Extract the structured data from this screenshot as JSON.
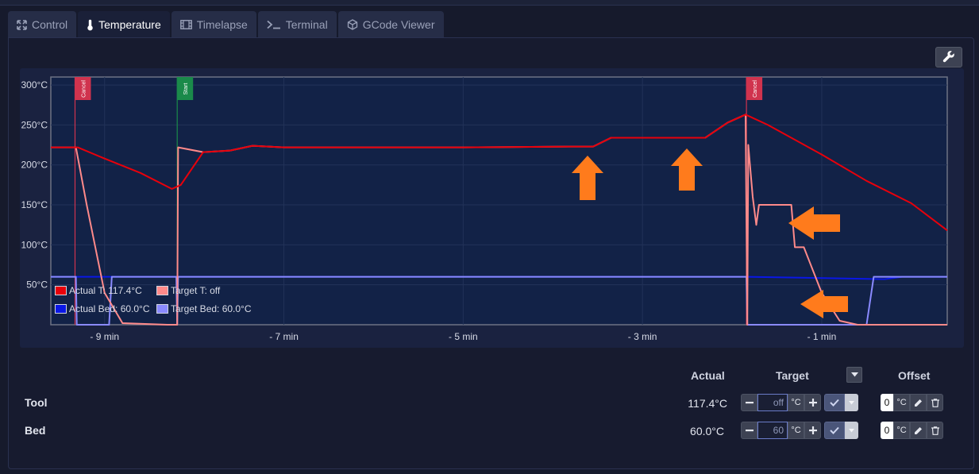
{
  "tabs": [
    {
      "label": "Control",
      "icon": "expand-arrows-icon",
      "active": false
    },
    {
      "label": "Temperature",
      "icon": "thermometer-icon",
      "active": true
    },
    {
      "label": "Timelapse",
      "icon": "film-icon",
      "active": false
    },
    {
      "label": "Terminal",
      "icon": "terminal-icon",
      "active": false
    },
    {
      "label": "GCode Viewer",
      "icon": "cube-icon",
      "active": false
    }
  ],
  "colors": {
    "actual_tool": "#e8000b",
    "target_tool": "#ff8a8a",
    "actual_bed": "#0a17e6",
    "target_bed": "#8a8aff",
    "annotation_arrow": "#ff7b1c"
  },
  "chart_data": {
    "type": "line",
    "x_unit": "min",
    "x_range": [
      -9.6,
      0.4
    ],
    "y_range": [
      0,
      310
    ],
    "x_ticks": [
      {
        "value": -9,
        "label": "- 9 min"
      },
      {
        "value": -7,
        "label": "- 7 min"
      },
      {
        "value": -5,
        "label": "- 5 min"
      },
      {
        "value": -3,
        "label": "- 3 min"
      },
      {
        "value": -1,
        "label": "- 1 min"
      }
    ],
    "y_ticks": [
      {
        "value": 300,
        "label": "300°C"
      },
      {
        "value": 250,
        "label": "250°C"
      },
      {
        "value": 200,
        "label": "200°C"
      },
      {
        "value": 150,
        "label": "150°C"
      },
      {
        "value": 100,
        "label": "100°C"
      },
      {
        "value": 50,
        "label": "50°C"
      }
    ],
    "grid": true,
    "legend_position": "bottom-left",
    "series": [
      {
        "name": "Actual T: 117.4°C",
        "color_key": "actual_tool",
        "points": [
          [
            -9.6,
            222
          ],
          [
            -9.3,
            222
          ],
          [
            -9.0,
            208
          ],
          [
            -8.6,
            190
          ],
          [
            -8.25,
            170
          ],
          [
            -8.15,
            175
          ],
          [
            -7.9,
            216
          ],
          [
            -7.6,
            218
          ],
          [
            -7.35,
            224
          ],
          [
            -7.0,
            222
          ],
          [
            -5.0,
            222
          ],
          [
            -3.8,
            223
          ],
          [
            -3.55,
            223
          ],
          [
            -3.35,
            234
          ],
          [
            -2.6,
            234
          ],
          [
            -2.3,
            234
          ],
          [
            -2.05,
            253
          ],
          [
            -1.85,
            263
          ],
          [
            -1.6,
            250
          ],
          [
            -1.0,
            213
          ],
          [
            -0.5,
            180
          ],
          [
            0.0,
            152
          ],
          [
            0.4,
            118
          ]
        ]
      },
      {
        "name": "Target T: off",
        "color_key": "target_tool",
        "points": [
          [
            -9.6,
            222
          ],
          [
            -9.32,
            222
          ],
          [
            -9.2,
            150
          ],
          [
            -9.0,
            40
          ],
          [
            -8.8,
            2
          ],
          [
            -8.3,
            0
          ],
          [
            -8.19,
            0
          ],
          [
            -8.18,
            222
          ],
          [
            -7.9,
            216
          ],
          [
            -7.6,
            218
          ],
          [
            -7.35,
            224
          ],
          [
            -7.0,
            222
          ],
          [
            -5.0,
            222
          ],
          [
            -3.8,
            223
          ],
          [
            -3.55,
            223
          ],
          [
            -3.35,
            234
          ],
          [
            -2.6,
            234
          ],
          [
            -2.3,
            234
          ],
          [
            -2.05,
            253
          ],
          [
            -1.85,
            263
          ],
          [
            -1.83,
            0
          ],
          [
            -1.82,
            225
          ],
          [
            -1.77,
            160
          ],
          [
            -1.73,
            125
          ],
          [
            -1.7,
            150
          ],
          [
            -1.34,
            150
          ],
          [
            -1.3,
            97
          ],
          [
            -1.2,
            97
          ],
          [
            -1.0,
            40
          ],
          [
            -0.8,
            5
          ],
          [
            -0.6,
            0
          ],
          [
            0.4,
            0
          ]
        ]
      },
      {
        "name": "Actual Bed: 60.0°C",
        "color_key": "actual_bed",
        "points": [
          [
            -9.6,
            60
          ],
          [
            -1.84,
            60
          ],
          [
            -0.3,
            57
          ],
          [
            -0.1,
            60
          ],
          [
            0.4,
            60
          ]
        ]
      },
      {
        "name": "Target Bed: 60.0°C",
        "color_key": "target_bed",
        "points": [
          [
            -9.6,
            60
          ],
          [
            -9.32,
            60
          ],
          [
            -9.31,
            0
          ],
          [
            -8.95,
            0
          ],
          [
            -8.92,
            60
          ],
          [
            -8.2,
            60
          ],
          [
            -8.19,
            0
          ],
          [
            -8.18,
            60
          ],
          [
            -1.84,
            60
          ],
          [
            -1.83,
            0
          ],
          [
            -0.5,
            0
          ],
          [
            -0.42,
            60
          ],
          [
            0.4,
            60
          ]
        ]
      }
    ],
    "annotations": [
      {
        "x": -9.33,
        "label": "Cancel",
        "color": "#d0334e"
      },
      {
        "x": -8.19,
        "label": "Start",
        "color": "#1a8a4a"
      },
      {
        "x": -1.84,
        "label": "Cancel",
        "color": "#d0334e"
      }
    ]
  },
  "legend": [
    {
      "label": "Actual T: 117.4°C",
      "color_key": "actual_tool"
    },
    {
      "label": "Target T: off",
      "color_key": "target_tool"
    },
    {
      "label": "Actual Bed: 60.0°C",
      "color_key": "actual_bed"
    },
    {
      "label": "Target Bed: 60.0°C",
      "color_key": "target_bed"
    }
  ],
  "table": {
    "headers": {
      "actual": "Actual",
      "target": "Target",
      "offset": "Offset"
    },
    "rows": [
      {
        "label": "Tool",
        "actual": "117.4°C",
        "target": "off",
        "unit": "°C",
        "offset": "0"
      },
      {
        "label": "Bed",
        "actual": "60.0°C",
        "target": "60",
        "unit": "°C",
        "offset": "0"
      }
    ]
  },
  "icons": {
    "settings": "wrench-icon",
    "decrement": "minus-icon",
    "increment": "plus-icon",
    "confirm": "check-icon",
    "dropdown": "caret-down-icon",
    "edit": "pencil-icon",
    "delete": "trash-icon"
  }
}
